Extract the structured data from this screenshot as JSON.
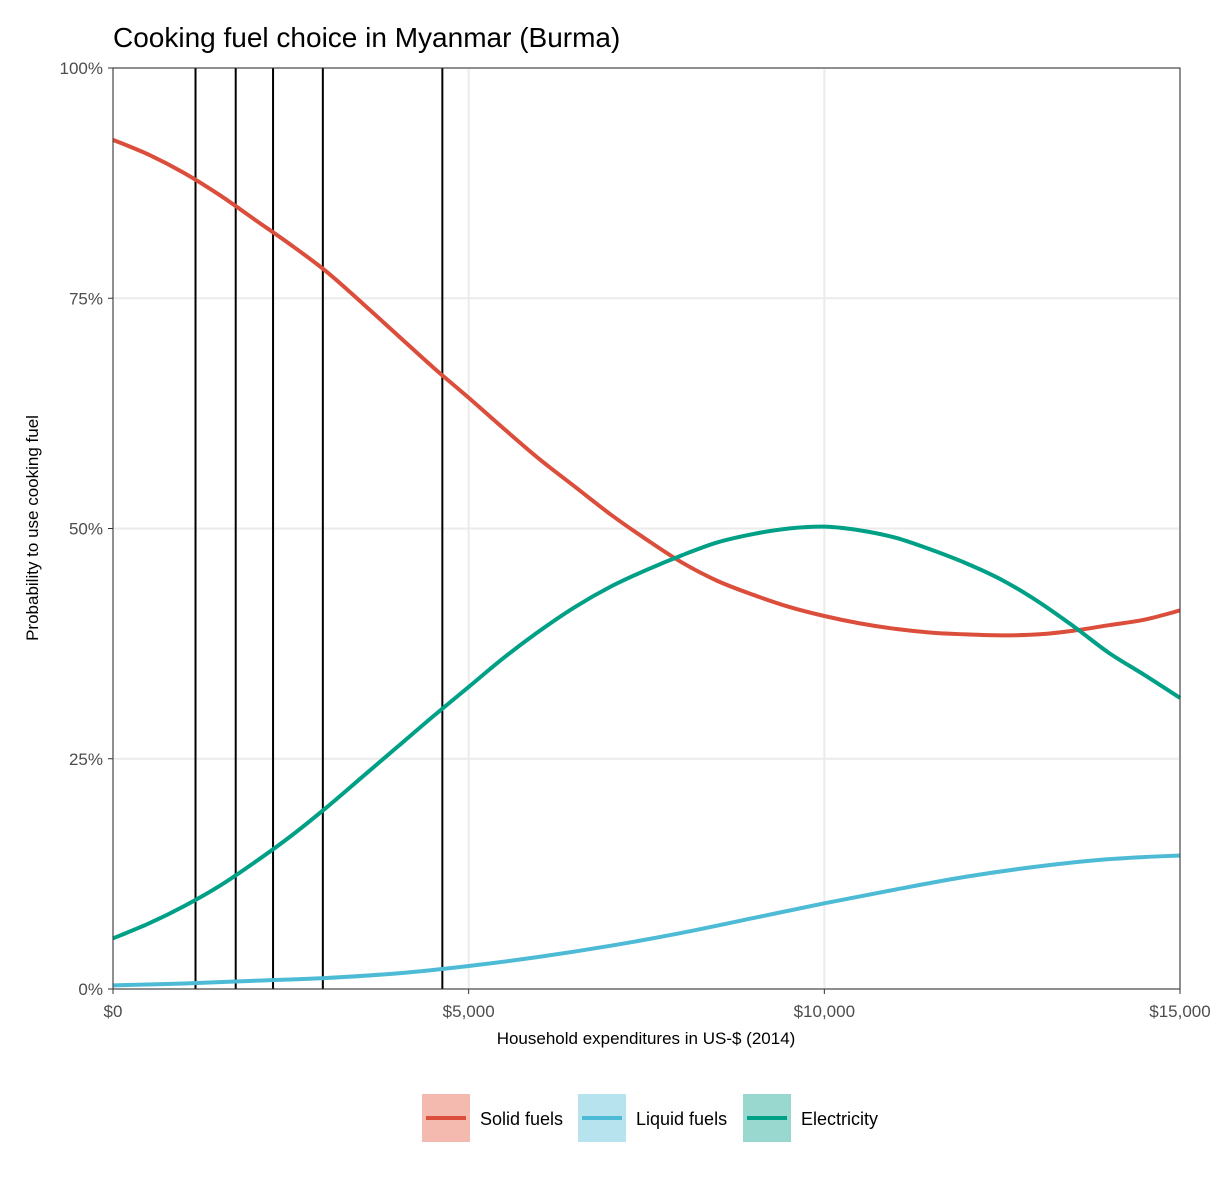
{
  "chart_data": {
    "type": "line",
    "title": "Cooking fuel choice in Myanmar (Burma)",
    "xlabel": "Household expenditures in US-$ (2014)",
    "ylabel": "Probability to use cooking fuel",
    "xlim": [
      0,
      15000
    ],
    "ylim": [
      0,
      1
    ],
    "x_ticks": [
      0,
      5000,
      10000,
      15000
    ],
    "x_tick_labels": [
      "$0",
      "$5,000",
      "$10,000",
      "$15,000"
    ],
    "y_ticks": [
      0,
      0.25,
      0.5,
      0.75,
      1.0
    ],
    "y_tick_labels": [
      "0%",
      "25%",
      "50%",
      "75%",
      "100%"
    ],
    "grid": true,
    "legend_position": "bottom",
    "vertical_lines": [
      1160,
      1725,
      2250,
      2950,
      4630
    ],
    "series": [
      {
        "name": "Solid fuels",
        "color": "#DC4E3C",
        "x": [
          0,
          500,
          1000,
          1500,
          2000,
          2500,
          3000,
          3500,
          4000,
          4500,
          5000,
          5500,
          6000,
          6500,
          7000,
          7500,
          8000,
          8500,
          9000,
          9500,
          10000,
          10500,
          11000,
          11500,
          12000,
          12500,
          13000,
          13500,
          14000,
          14500,
          15000
        ],
        "y": [
          0.922,
          0.906,
          0.886,
          0.862,
          0.835,
          0.808,
          0.779,
          0.745,
          0.71,
          0.675,
          0.642,
          0.608,
          0.575,
          0.545,
          0.515,
          0.488,
          0.463,
          0.443,
          0.428,
          0.415,
          0.405,
          0.397,
          0.391,
          0.387,
          0.385,
          0.384,
          0.385,
          0.389,
          0.395,
          0.401,
          0.411
        ]
      },
      {
        "name": "Liquid fuels",
        "color": "#4DBBD5",
        "x": [
          0,
          1000,
          2000,
          3000,
          4000,
          5000,
          6000,
          7000,
          8000,
          9000,
          10000,
          11000,
          12000,
          13000,
          14000,
          15000
        ],
        "y": [
          0.004,
          0.006,
          0.009,
          0.012,
          0.017,
          0.025,
          0.035,
          0.047,
          0.061,
          0.077,
          0.093,
          0.108,
          0.122,
          0.133,
          0.141,
          0.145
        ]
      },
      {
        "name": "Electricity",
        "color": "#00A087",
        "x": [
          0,
          500,
          1000,
          1500,
          2000,
          2500,
          3000,
          3500,
          4000,
          4500,
          5000,
          5500,
          6000,
          6500,
          7000,
          7500,
          8000,
          8500,
          9000,
          9500,
          10000,
          10500,
          11000,
          11500,
          12000,
          12500,
          13000,
          13500,
          14000,
          14500,
          15000
        ],
        "y": [
          0.055,
          0.071,
          0.09,
          0.112,
          0.138,
          0.166,
          0.197,
          0.23,
          0.263,
          0.296,
          0.328,
          0.36,
          0.389,
          0.415,
          0.437,
          0.455,
          0.471,
          0.485,
          0.494,
          0.5,
          0.502,
          0.498,
          0.49,
          0.477,
          0.462,
          0.444,
          0.421,
          0.394,
          0.365,
          0.341,
          0.316
        ]
      }
    ]
  }
}
